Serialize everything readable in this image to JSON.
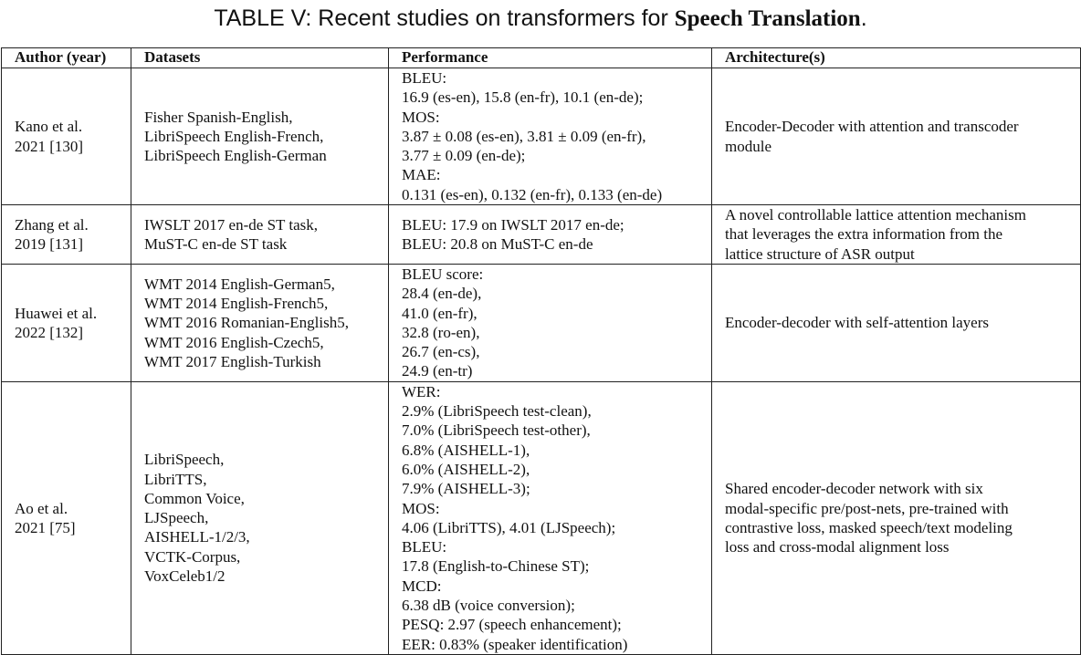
{
  "caption": {
    "prefix": "TABLE V: Recent studies on transformers for ",
    "bold": "Speech Translation",
    "suffix": "."
  },
  "headers": [
    "Author (year)",
    "Datasets",
    "Performance",
    "Architecture(s)"
  ],
  "rows": [
    {
      "author": [
        "Kano et al.",
        "2021 [130]"
      ],
      "datasets": [
        "Fisher Spanish-English,",
        "LibriSpeech English-French,",
        "LibriSpeech English-German"
      ],
      "performance": [
        "BLEU:",
        "16.9 (es-en), 15.8 (en-fr), 10.1 (en-de);",
        "MOS:",
        "3.87 ± 0.08 (es-en), 3.81 ± 0.09 (en-fr),",
        "3.77 ± 0.09 (en-de);",
        "MAE:",
        "0.131 (es-en), 0.132 (en-fr), 0.133 (en-de)"
      ],
      "architecture": [
        "Encoder-Decoder with attention and transcoder",
        "module"
      ]
    },
    {
      "author": [
        "Zhang et al.",
        "2019 [131]"
      ],
      "datasets": [
        "IWSLT 2017 en-de ST task,",
        "MuST-C en-de ST task"
      ],
      "performance": [
        "BLEU: 17.9 on IWSLT 2017 en-de;",
        "BLEU: 20.8 on MuST-C en-de"
      ],
      "architecture": [
        "A novel controllable lattice attention mechanism",
        "that leverages the extra information from the",
        "lattice structure of ASR output"
      ]
    },
    {
      "author": [
        "Huawei et al.",
        "2022 [132]"
      ],
      "datasets": [
        "WMT 2014 English-German5,",
        "WMT 2014 English-French5,",
        "WMT 2016 Romanian-English5,",
        "WMT 2016 English-Czech5,",
        "WMT 2017 English-Turkish"
      ],
      "performance": [
        "BLEU score:",
        "28.4 (en-de),",
        "41.0 (en-fr),",
        "32.8 (ro-en),",
        "26.7 (en-cs),",
        "24.9 (en-tr)"
      ],
      "architecture": [
        "Encoder-decoder with self-attention layers"
      ]
    },
    {
      "author": [
        "Ao et al.",
        "2021 [75]"
      ],
      "datasets": [
        "LibriSpeech,",
        "LibriTTS,",
        "Common Voice,",
        "LJSpeech,",
        "AISHELL-1/2/3,",
        "VCTK-Corpus,",
        "VoxCeleb1/2"
      ],
      "performance": [
        "WER:",
        "2.9% (LibriSpeech test-clean),",
        "7.0% (LibriSpeech test-other),",
        "6.8% (AISHELL-1),",
        "6.0% (AISHELL-2),",
        "7.9% (AISHELL-3);",
        "MOS:",
        "4.06 (LibriTTS), 4.01 (LJSpeech);",
        "BLEU:",
        "17.8 (English-to-Chinese ST);",
        "MCD:",
        "6.38 dB (voice conversion);",
        "PESQ: 2.97 (speech enhancement);",
        "EER: 0.83% (speaker identification)"
      ],
      "architecture": [
        "Shared encoder-decoder network with six",
        "modal-specific pre/post-nets, pre-trained with",
        "contrastive loss, masked speech/text modeling",
        "loss and cross-modal alignment loss"
      ]
    }
  ]
}
